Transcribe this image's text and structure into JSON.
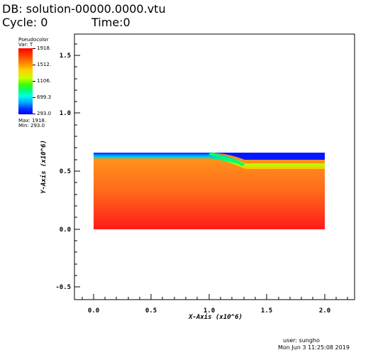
{
  "header": {
    "db": "DB: solution-00000.0000.vtu",
    "cycle": "Cycle: 0",
    "time": "Time:0"
  },
  "legend": {
    "title": "Pseudocolor",
    "var": "Var: T",
    "ticks": [
      "1918.",
      "1512.",
      "1106.",
      "699.3",
      "293.0"
    ],
    "max": "Max:  1918.",
    "min": "Min:  293.0"
  },
  "axes": {
    "x_label": "X-Axis (x10^6)",
    "y_label": "Y-Axis (x10^6)",
    "x_ticks": [
      "0.0",
      "0.5",
      "1.0",
      "1.5",
      "2.0"
    ],
    "y_ticks": [
      "1.5",
      "1.0",
      "0.5",
      "0.0",
      "-0.5"
    ]
  },
  "footer": {
    "user": "user: sungho",
    "date": "Mon Jun  3 11:25:08 2019"
  },
  "colors": {
    "hot": "#ff0000",
    "mid": "#ffa500",
    "cold": "#0000ff"
  }
}
